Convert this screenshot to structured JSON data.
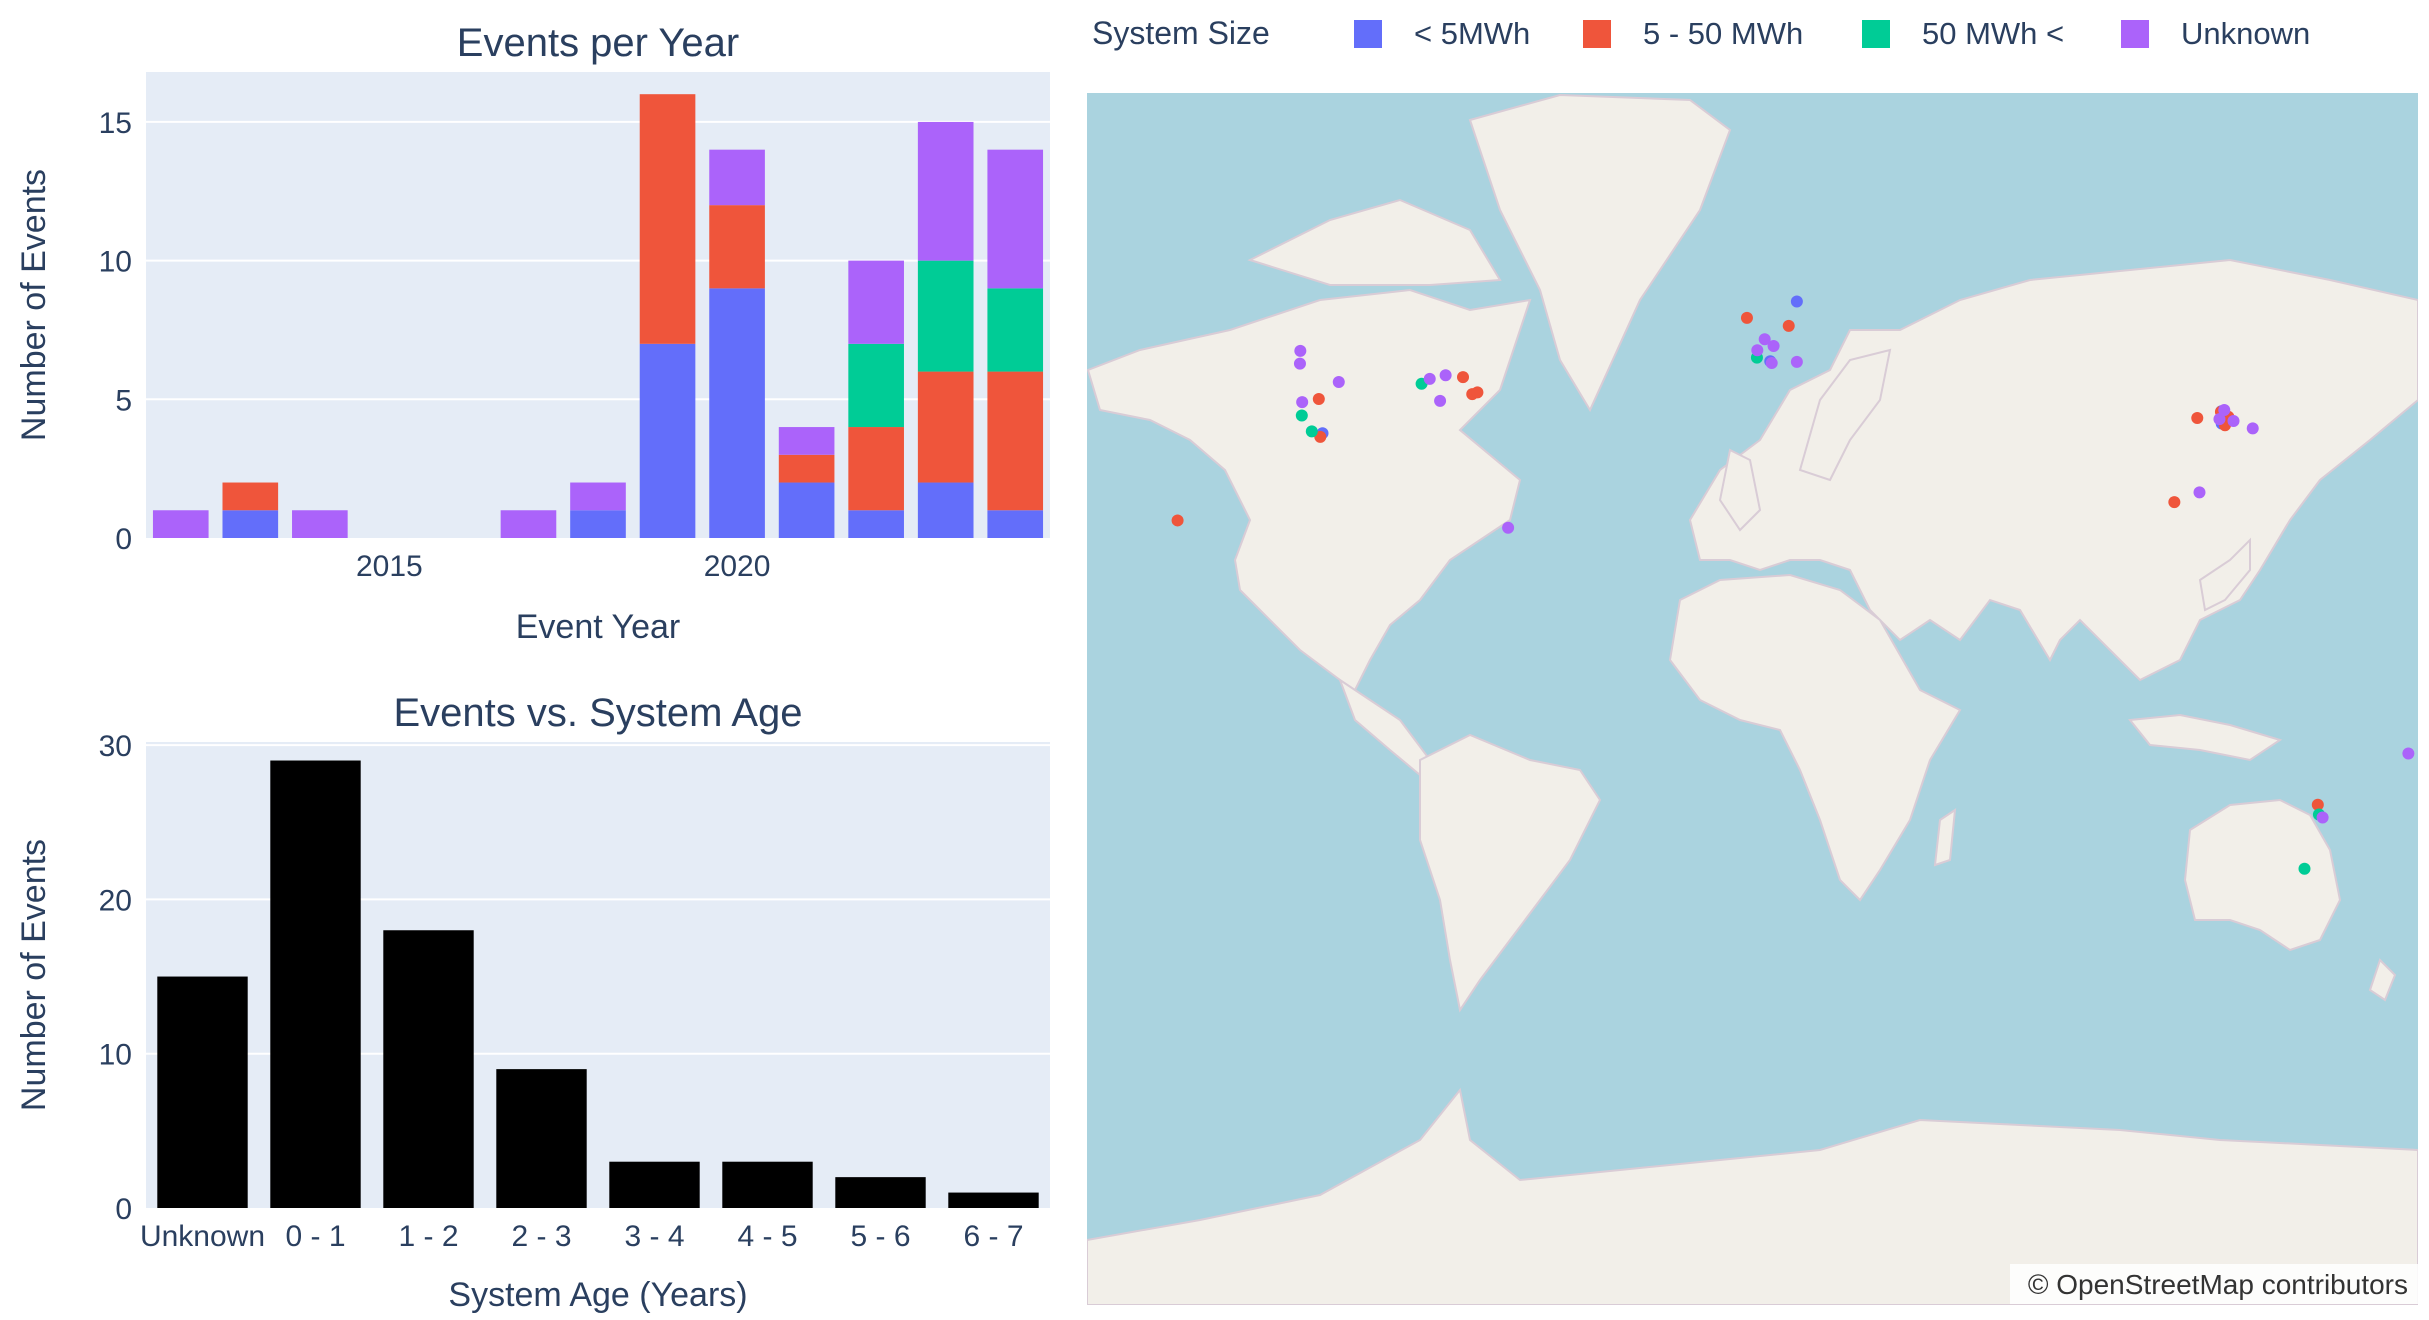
{
  "chart_data": [
    {
      "type": "bar",
      "stacked": true,
      "title": "Events per Year",
      "xlabel": "Event Year",
      "ylabel": "Number of Events",
      "x": [
        2012,
        2013,
        2014,
        2015,
        2016,
        2017,
        2018,
        2019,
        2020,
        2021,
        2022,
        2023,
        2024
      ],
      "xticks": [
        2015,
        2020
      ],
      "ylim": [
        0,
        16.8
      ],
      "yticks": [
        0,
        5,
        10,
        15
      ],
      "grid": true,
      "series": [
        {
          "name": "< 5MWh",
          "color": "#636efa",
          "values": [
            0,
            1,
            0,
            0,
            0,
            0,
            1,
            7,
            9,
            2,
            1,
            2,
            1
          ]
        },
        {
          "name": "5 - 50 MWh",
          "color": "#ef553b",
          "values": [
            0,
            1,
            0,
            0,
            0,
            0,
            0,
            9,
            3,
            1,
            3,
            4,
            5
          ]
        },
        {
          "name": "50 MWh <",
          "color": "#00cc96",
          "values": [
            0,
            0,
            0,
            0,
            0,
            0,
            0,
            0,
            0,
            0,
            3,
            4,
            3
          ]
        },
        {
          "name": "Unknown",
          "color": "#ab63fa",
          "values": [
            1,
            0,
            1,
            0,
            0,
            1,
            1,
            0,
            2,
            1,
            3,
            5,
            5
          ]
        }
      ]
    },
    {
      "type": "bar",
      "title": "Events vs. System Age",
      "xlabel": "System Age (Years)",
      "ylabel": "Number of Events",
      "categories": [
        "Unknown",
        "0 - 1",
        "1 - 2",
        "2 - 3",
        "3 - 4",
        "4 - 5",
        "5 - 6",
        "6 - 7"
      ],
      "values": [
        15,
        29,
        18,
        9,
        3,
        3,
        2,
        1
      ],
      "color": "#000000",
      "ylim": [
        0,
        30.2
      ],
      "yticks": [
        0,
        10,
        20,
        30
      ],
      "grid": true
    },
    {
      "type": "scatter",
      "title": "",
      "x_name": "longitude",
      "y_name": "latitude",
      "background": "OpenStreetMap world map",
      "legend": {
        "title": "System Size",
        "position": "top",
        "items": [
          {
            "label": "< 5MWh",
            "color": "#636efa"
          },
          {
            "label": "5 - 50 MWh",
            "color": "#ef553b"
          },
          {
            "label": "50 MWh <",
            "color": "#00cc96"
          },
          {
            "label": "Unknown",
            "color": "#ab63fa"
          }
        ]
      },
      "attribution": "© OpenStreetMap contributors",
      "series": [
        {
          "name": "< 5MWh",
          "color": "#636efa",
          "points": [
            [
              -116.3,
              33.9
            ],
            [
              12.0,
              55.5
            ],
            [
              4.8,
              45.7
            ],
            [
              126.8,
              37.5
            ],
            [
              126.9,
              35.5
            ],
            [
              127.2,
              36.8
            ]
          ]
        },
        {
          "name": "5 - 50 MWh",
          "color": "#ef553b",
          "points": [
            [
              -155.5,
              19.6
            ],
            [
              -117.3,
              39.5
            ],
            [
              -116.9,
              33.3
            ],
            [
              -78.3,
              43.1
            ],
            [
              -75.8,
              40.3
            ],
            [
              -74.4,
              40.6
            ],
            [
              -1.5,
              52.8
            ],
            [
              9.8,
              51.5
            ],
            [
              120.3,
              36.4
            ],
            [
              114.1,
              22.6
            ],
            [
              152.9,
              -27.0
            ],
            [
              126.7,
              37.4
            ],
            [
              128.7,
              36.6
            ],
            [
              127.8,
              35.2
            ]
          ]
        },
        {
          "name": "50 MWh <",
          "color": "#00cc96",
          "points": [
            [
              -121.9,
              36.8
            ],
            [
              -119.2,
              34.2
            ],
            [
              -89.5,
              42.0
            ],
            [
              1.2,
              46.3
            ],
            [
              153.2,
              -28.6
            ],
            [
              149.3,
              -37.5
            ]
          ]
        },
        {
          "name": "Unknown",
          "color": "#ab63fa",
          "points": [
            [
              -122.3,
              47.4
            ],
            [
              -122.4,
              45.3
            ],
            [
              -121.8,
              39.0
            ],
            [
              -111.9,
              42.3
            ],
            [
              -87.3,
              42.8
            ],
            [
              -83.0,
              43.4
            ],
            [
              -84.5,
              39.2
            ],
            [
              -66.1,
              18.4
            ],
            [
              3.3,
              49.3
            ],
            [
              5.7,
              48.2
            ],
            [
              1.3,
              47.5
            ],
            [
              5.2,
              45.4
            ],
            [
              12.0,
              45.6
            ],
            [
              130.1,
              35.9
            ],
            [
              120.9,
              24.2
            ],
            [
              135.3,
              34.7
            ],
            [
              154.2,
              -29.1
            ],
            [
              177.4,
              -18.6
            ],
            [
              126.3,
              36.2
            ],
            [
              127.6,
              37.7
            ]
          ]
        }
      ]
    }
  ]
}
